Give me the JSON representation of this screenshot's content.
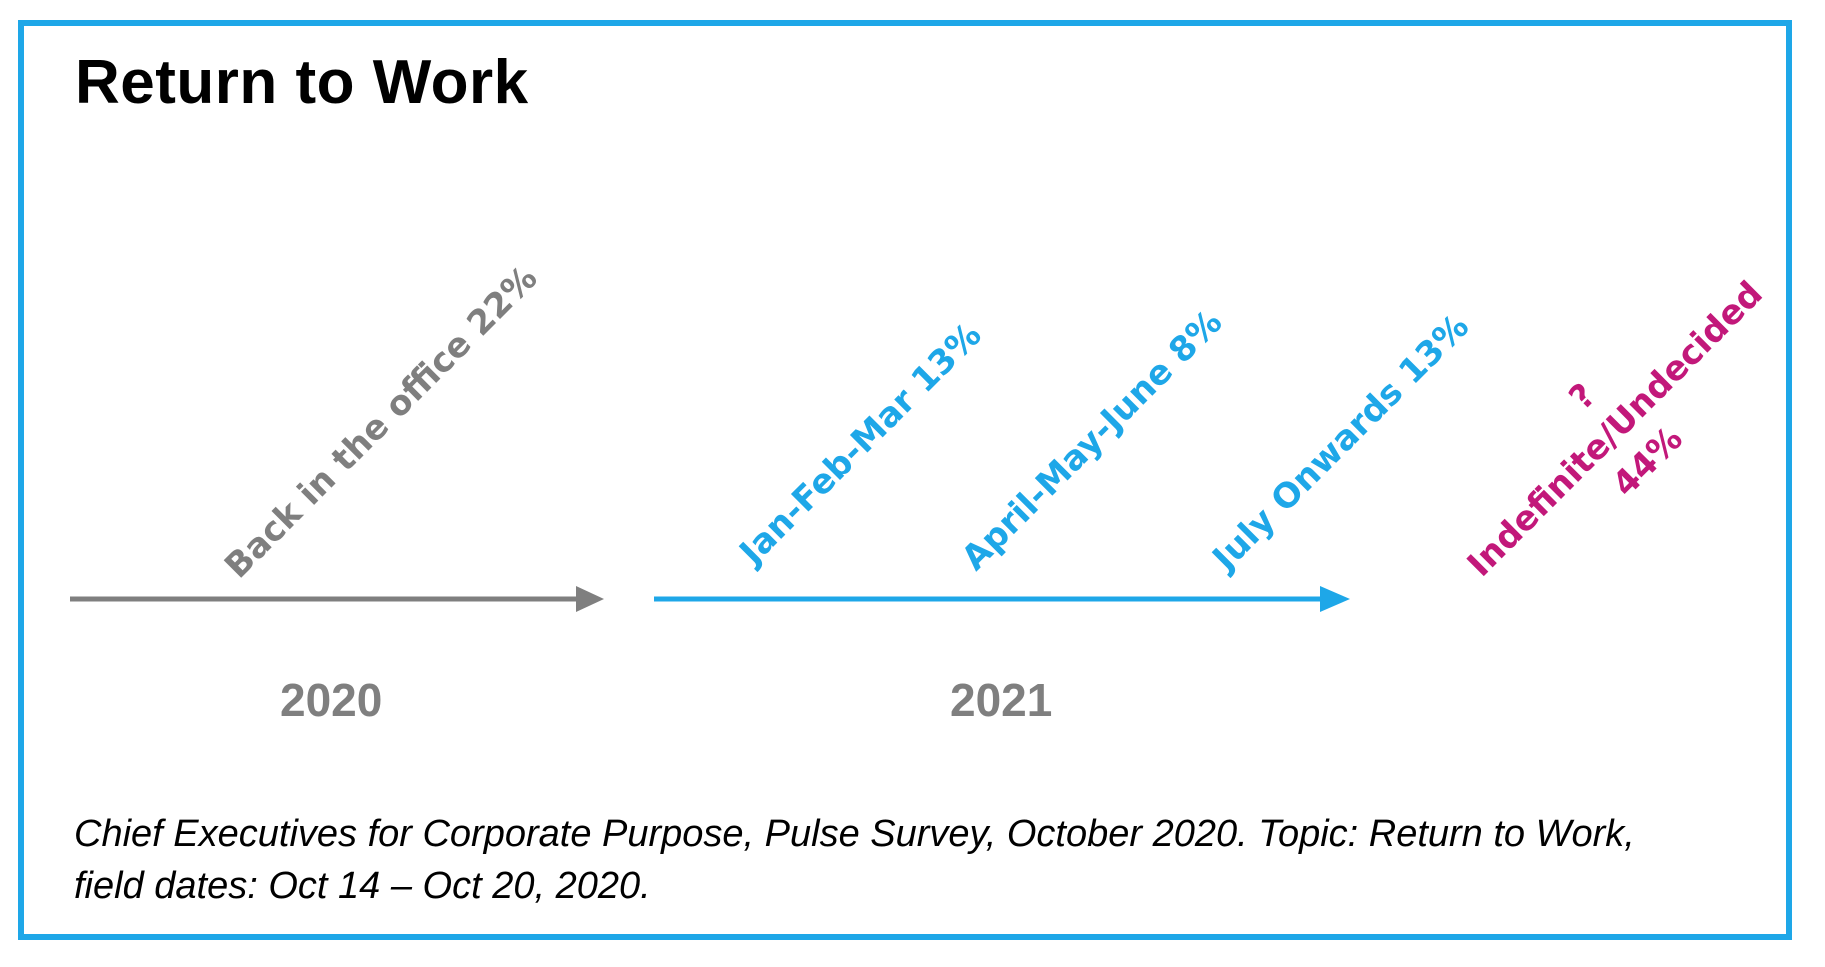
{
  "title": "Return to Work",
  "colors": {
    "frame": "#1ea7e8",
    "gray": "#7f7f7f",
    "blue": "#1ea7e8",
    "magenta": "#c2187a"
  },
  "timeline": {
    "segments": [
      {
        "year": "2020",
        "color": "#7f7f7f",
        "labels": [
          {
            "text": "Back in the office 22%"
          }
        ]
      },
      {
        "year": "2021",
        "color": "#1ea7e8",
        "labels": [
          {
            "text": "Jan-Feb-Mar 13%"
          },
          {
            "text": "April-May-June 8%"
          },
          {
            "text": "July Onwards 13%"
          }
        ]
      }
    ],
    "undecided": {
      "question": "?",
      "label": "Indefinite/Undecided",
      "value": "44%",
      "color": "#c2187a"
    }
  },
  "source": "Chief Executives for Corporate Purpose, Pulse Survey, October 2020. Topic: Return to Work, field dates: Oct 14 – Oct 20, 2020."
}
